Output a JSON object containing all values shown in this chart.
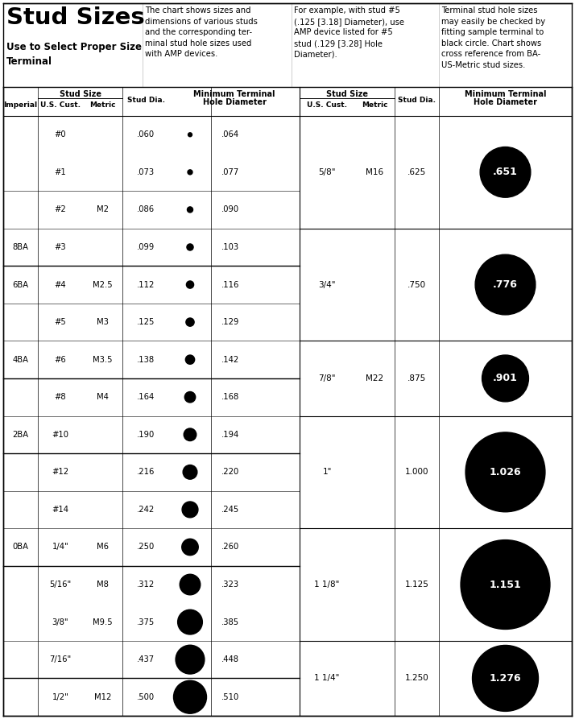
{
  "title": "Stud Sizes",
  "subtitle": "Use to Select Proper Size\nTerminal",
  "desc1": "The chart shows sizes and\ndimensions of various studs\nand the corresponding ter-\nminal stud hole sizes used\nwith AMP devices.",
  "desc2": "For example, with stud #5\n(.125 [3.18] Diameter), use\nAMP device listed for #5\nstud (.129 [3.28] Hole\nDiameter).",
  "desc3": "Terminal stud hole sizes\nmay easily be checked by\nfitting sample terminal to\nblack circle. Chart shows\ncross reference from BA-\nUS-Metric stud sizes.",
  "left_rows": [
    [
      "",
      "#0",
      "",
      ".060",
      0.06,
      ".064"
    ],
    [
      "",
      "#1",
      "",
      ".073",
      0.073,
      ".077"
    ],
    [
      "",
      "#2",
      "M2",
      ".086",
      0.086,
      ".090"
    ],
    [
      "8BA",
      "#3",
      "",
      ".099",
      0.099,
      ".103"
    ],
    [
      "6BA",
      "#4",
      "M2.5",
      ".112",
      0.112,
      ".116"
    ],
    [
      "",
      "#5",
      "M3",
      ".125",
      0.125,
      ".129"
    ],
    [
      "4BA",
      "#6",
      "M3.5",
      ".138",
      0.138,
      ".142"
    ],
    [
      "",
      "#8",
      "M4",
      ".164",
      0.164,
      ".168"
    ],
    [
      "2BA",
      "#10",
      "",
      ".190",
      0.19,
      ".194"
    ],
    [
      "",
      "#12",
      "",
      ".216",
      0.216,
      ".220"
    ],
    [
      "",
      "#14",
      "",
      ".242",
      0.242,
      ".245"
    ],
    [
      "0BA",
      "1/4\"",
      "M6",
      ".250",
      0.25,
      ".260"
    ],
    [
      "",
      "5/16\"",
      "M8",
      ".312",
      0.312,
      ".323"
    ],
    [
      "",
      "3/8\"",
      "M9.5",
      ".375",
      0.375,
      ".385"
    ],
    [
      "",
      "7/16\"",
      "",
      ".437",
      0.437,
      ".448"
    ],
    [
      "",
      "1/2\"",
      "M12",
      ".500",
      0.5,
      ".510"
    ]
  ],
  "right_rows": [
    [
      "5/8\"",
      "M16",
      ".625",
      ".651",
      0.651,
      3
    ],
    [
      "3/4\"",
      "",
      ".750",
      ".776",
      0.776,
      3
    ],
    [
      "7/8\"",
      "M22",
      ".875",
      ".901",
      0.901,
      2
    ],
    [
      "1\"",
      "",
      "1.000",
      "1.026",
      1.026,
      3
    ],
    [
      "1 1/8\"",
      "",
      "1.125",
      "1.151",
      1.151,
      3
    ],
    [
      "1 1/4\"",
      "",
      "1.250",
      "1.276",
      1.276,
      2
    ]
  ],
  "left_thin_dividers_after": [
    1,
    2,
    4,
    5,
    7,
    9,
    10,
    13
  ],
  "left_thick_dividers_after": [
    3,
    6,
    8,
    11,
    14
  ],
  "bg_color": "#ffffff"
}
